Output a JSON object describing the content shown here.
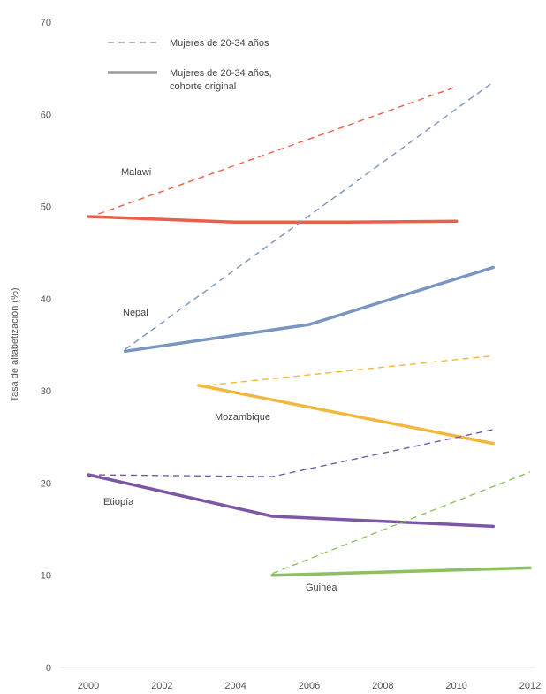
{
  "chart_data": {
    "type": "line",
    "ylabel": "Tasa de alfabetización (%)",
    "xlabel": "",
    "xlim": [
      2000,
      2012
    ],
    "ylim": [
      0,
      70
    ],
    "xticks": [
      "2000",
      "2002",
      "2004",
      "2006",
      "2008",
      "2010",
      "2012"
    ],
    "yticks": [
      "0",
      "10",
      "20",
      "30",
      "40",
      "50",
      "60",
      "70"
    ],
    "grid": false,
    "legend": {
      "position": "top-left",
      "dashed_label": "Mujeres de 20-34 años",
      "solid_label_line1": "Mujeres de 20-34 años,",
      "solid_label_line2": "cohorte original"
    },
    "countries": [
      {
        "name": "Malawi",
        "color": "#e8604c",
        "dashed": [
          [
            2000,
            48.8
          ],
          [
            2010,
            63.0
          ]
        ],
        "solid": [
          [
            2000,
            48.9
          ],
          [
            2004,
            48.3
          ],
          [
            2007,
            48.3
          ],
          [
            2010,
            48.4
          ]
        ]
      },
      {
        "name": "Nepal",
        "color": "#7b95c2",
        "dashed": [
          [
            2001,
            34.5
          ],
          [
            2006,
            49.0
          ],
          [
            2011,
            63.5
          ]
        ],
        "solid": [
          [
            2001,
            34.3
          ],
          [
            2006,
            37.2
          ],
          [
            2011,
            43.4
          ]
        ]
      },
      {
        "name": "Mozambique",
        "color": "#f0b83c",
        "dashed": [
          [
            2003,
            30.5
          ],
          [
            2011,
            33.8
          ]
        ],
        "solid": [
          [
            2003,
            30.6
          ],
          [
            2011,
            24.3
          ]
        ]
      },
      {
        "name": "Etiopía",
        "color": "#7d57a6",
        "dashed": [
          [
            2000,
            20.9
          ],
          [
            2005,
            20.7
          ],
          [
            2011,
            25.8
          ]
        ],
        "solid": [
          [
            2000,
            20.9
          ],
          [
            2005,
            16.4
          ],
          [
            2011,
            15.3
          ]
        ]
      },
      {
        "name": "Guinea",
        "color": "#8dc060",
        "dashed": [
          [
            2005,
            10.2
          ],
          [
            2012,
            21.2
          ]
        ],
        "solid": [
          [
            2005,
            10.0
          ],
          [
            2012,
            10.8
          ]
        ]
      }
    ]
  }
}
